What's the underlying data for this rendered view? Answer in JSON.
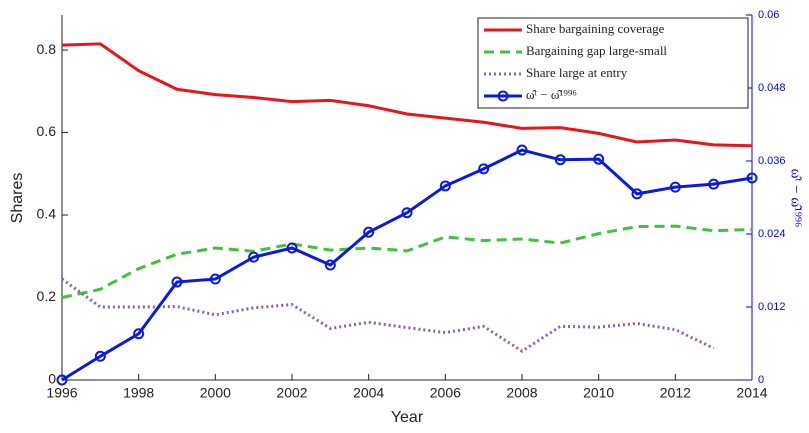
{
  "chart_data": {
    "type": "line",
    "x_label": "Year",
    "y_label": "Shares",
    "y2_label": "ω̂ᵗ − ω̂¹⁹⁹⁶",
    "x": [
      1996,
      1997,
      1998,
      1999,
      2000,
      2001,
      2002,
      2003,
      2004,
      2005,
      2006,
      2007,
      2008,
      2009,
      2010,
      2011,
      2012,
      2013,
      2014
    ],
    "xlim": [
      1996,
      2014
    ],
    "xticks": [
      1996,
      1998,
      2000,
      2002,
      2004,
      2006,
      2008,
      2010,
      2012,
      2014
    ],
    "ylim": [
      0,
      0.885
    ],
    "yticks": [
      0,
      0.2,
      0.4,
      0.6,
      0.8
    ],
    "y2lim": [
      0,
      0.06
    ],
    "y2ticks": [
      0,
      0.012,
      0.024,
      0.036,
      0.048,
      0.06
    ],
    "y2_color": "#0000ff",
    "legend": "upper right",
    "series": [
      {
        "name": "Share bargaining coverage",
        "color": "#e8161a",
        "style": "solid",
        "values": [
          0.812,
          0.815,
          0.75,
          0.705,
          0.692,
          0.685,
          0.675,
          0.678,
          0.665,
          0.645,
          0.635,
          0.625,
          0.61,
          0.612,
          0.598,
          0.577,
          0.582,
          0.57,
          0.568
        ]
      },
      {
        "name": "Bargaining gap large-small",
        "color": "#3cc43c",
        "style": "dashed",
        "values": [
          0.2,
          0.22,
          0.27,
          0.305,
          0.32,
          0.312,
          0.33,
          0.315,
          0.32,
          0.313,
          0.347,
          0.338,
          0.342,
          0.332,
          0.355,
          0.372,
          0.373,
          0.362,
          0.365
        ]
      },
      {
        "name": "Share large at entry",
        "color": "#8a5fb0",
        "style": "dotted",
        "values": [
          0.245,
          0.177,
          0.177,
          0.178,
          0.158,
          0.175,
          0.183,
          0.125,
          0.14,
          0.127,
          0.115,
          0.13,
          0.07,
          0.13,
          0.128,
          0.137,
          0.122,
          0.077,
          null
        ]
      },
      {
        "name": "ω̂ᵗ − ω̂¹⁹⁹⁶",
        "color": "#0a1adf",
        "style": "solid",
        "marker": "circle",
        "axis": "y2",
        "values": [
          0,
          0.0039,
          0.0076,
          0.0161,
          0.0166,
          0.0202,
          0.0217,
          0.0189,
          0.0243,
          0.0275,
          0.0319,
          0.0347,
          0.0378,
          0.0362,
          0.0363,
          0.0306,
          0.0317,
          0.0322,
          0.0332
        ]
      }
    ]
  }
}
